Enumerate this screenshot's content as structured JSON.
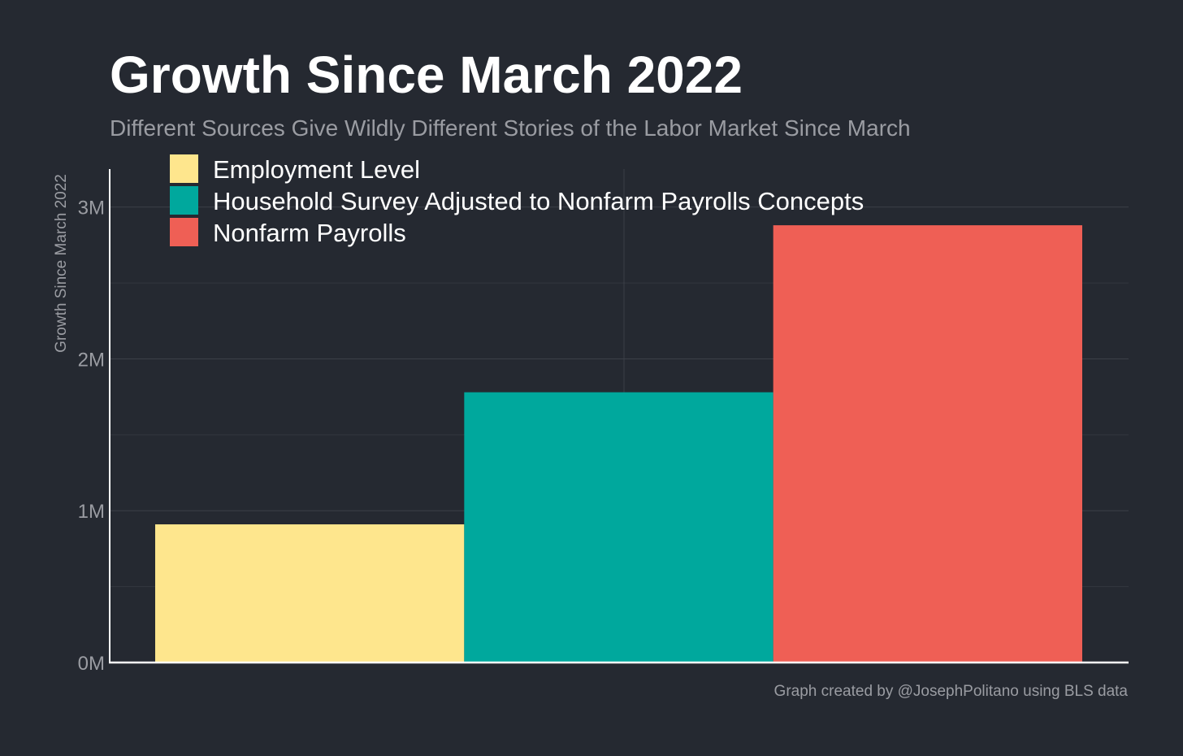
{
  "chart_data": {
    "type": "bar",
    "title": "Growth Since March 2022",
    "subtitle": "Different Sources Give Wildly Different Stories of the Labor Market Since March",
    "ylabel": "Growth Since March 2022",
    "xlabel": "",
    "caption": "Graph created by @JosephPolitano using BLS data",
    "ylim": [
      0,
      3250000
    ],
    "yticks": [
      0,
      1000000,
      2000000,
      3000000
    ],
    "ytick_labels": [
      "0M",
      "1M",
      "2M",
      "3M"
    ],
    "grid": true,
    "legend_position": "top-left",
    "series": [
      {
        "name": "Employment Level",
        "value": 910000,
        "color": "#fee68d"
      },
      {
        "name": "Household Survey Adjusted to Nonfarm Payrolls Concepts",
        "value": 1780000,
        "color": "#00a89d"
      },
      {
        "name": "Nonfarm Payrolls",
        "value": 2880000,
        "color": "#ef5f55"
      }
    ]
  }
}
